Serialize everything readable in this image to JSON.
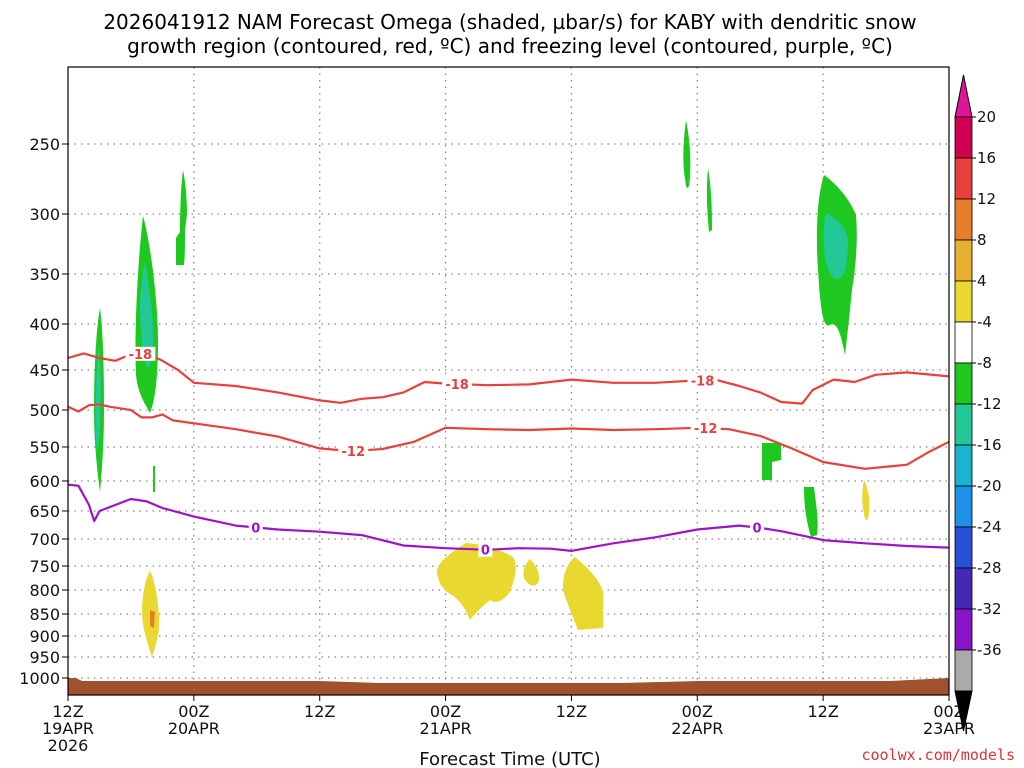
{
  "title_line1": "2026041912 NAM Forecast Omega (shaded, µbar/s) for KABY with dendritic snow",
  "title_line2": "growth region (contoured, red, ºC) and freezing level (contoured, purple, ºC)",
  "credit": "coolwx.com/models",
  "colors": {
    "dgz_contour": "#e8403a",
    "freezing_contour": "#9b14c8",
    "terrain": "#a0522d",
    "grid": "#888888"
  },
  "chart_data": {
    "type": "heatmap",
    "title": "2026041912 NAM Forecast Omega (shaded, µbar/s) for KABY with dendritic snow growth region (contoured, red, ºC) and freezing level (contoured, purple, ºC)",
    "xlabel": "Forecast Time (UTC)",
    "ylabel": "",
    "x_range_hours": [
      0,
      84
    ],
    "y_range_hPa": [
      1030,
      200
    ],
    "y_ticks": [
      "250",
      "300",
      "350",
      "400",
      "450",
      "500",
      "550",
      "600",
      "650",
      "700",
      "750",
      "800",
      "850",
      "900",
      "950",
      "1000"
    ],
    "x_ticks": [
      {
        "hour": 0,
        "line1": "12Z",
        "line2": "19APR",
        "line3": "2026"
      },
      {
        "hour": 12,
        "line1": "00Z",
        "line2": "20APR",
        "line3": ""
      },
      {
        "hour": 24,
        "line1": "12Z",
        "line2": "",
        "line3": ""
      },
      {
        "hour": 36,
        "line1": "00Z",
        "line2": "21APR",
        "line3": ""
      },
      {
        "hour": 48,
        "line1": "12Z",
        "line2": "",
        "line3": ""
      },
      {
        "hour": 60,
        "line1": "00Z",
        "line2": "22APR",
        "line3": ""
      },
      {
        "hour": 72,
        "line1": "12Z",
        "line2": "",
        "line3": ""
      },
      {
        "hour": 84,
        "line1": "00Z",
        "line2": "23APR",
        "line3": ""
      }
    ],
    "grid": true,
    "colorbar": {
      "units": "µbar/s",
      "levels": [
        "20",
        "16",
        "12",
        "8",
        "4",
        "-4",
        "-8",
        "-12",
        "-16",
        "-20",
        "-24",
        "-28",
        "-32",
        "-36"
      ],
      "colors": [
        "#d20050",
        "#e8403a",
        "#e87e2a",
        "#e8b030",
        "#e8d830",
        "#ffffff",
        "#1ec81e",
        "#22c896",
        "#19b4d2",
        "#1e90e6",
        "#2850d8",
        "#4628b4",
        "#8c14c8",
        "#aaaaaa"
      ],
      "top_arrow": "#e0149a",
      "bottom_arrow": "#000000"
    },
    "series": [
      {
        "name": "-18",
        "kind": "isotherm",
        "label_hours": [
          6.9,
          37.1,
          60.5
        ],
        "points": [
          [
            0,
            437
          ],
          [
            1.5,
            432
          ],
          [
            3,
            437
          ],
          [
            4.5,
            440
          ],
          [
            6,
            433
          ],
          [
            7.5,
            432
          ],
          [
            9,
            440
          ],
          [
            10.5,
            450
          ],
          [
            12,
            466
          ],
          [
            16,
            470
          ],
          [
            20,
            478
          ],
          [
            24,
            488
          ],
          [
            26,
            491
          ],
          [
            28,
            486
          ],
          [
            30,
            484
          ],
          [
            32,
            478
          ],
          [
            34,
            465
          ],
          [
            36,
            467
          ],
          [
            40,
            469
          ],
          [
            44,
            468
          ],
          [
            48,
            462
          ],
          [
            52,
            466
          ],
          [
            56,
            466
          ],
          [
            60,
            463
          ],
          [
            62,
            463
          ],
          [
            64,
            470
          ],
          [
            66,
            478
          ],
          [
            68,
            490
          ],
          [
            70,
            492
          ],
          [
            71,
            475
          ],
          [
            73,
            462
          ],
          [
            75,
            465
          ],
          [
            77,
            456
          ],
          [
            80,
            453
          ],
          [
            84,
            458
          ]
        ]
      },
      {
        "name": "-12",
        "kind": "isotherm",
        "label_hours": [
          27.2,
          60.8
        ],
        "points": [
          [
            0,
            496
          ],
          [
            1,
            502
          ],
          [
            2,
            494
          ],
          [
            3,
            493
          ],
          [
            4,
            496
          ],
          [
            6,
            500
          ],
          [
            7,
            510
          ],
          [
            8,
            510
          ],
          [
            9,
            506
          ],
          [
            10,
            514
          ],
          [
            12,
            518
          ],
          [
            16,
            526
          ],
          [
            20,
            536
          ],
          [
            24,
            552
          ],
          [
            27,
            556
          ],
          [
            30,
            553
          ],
          [
            33,
            543
          ],
          [
            36,
            524
          ],
          [
            40,
            526
          ],
          [
            44,
            527
          ],
          [
            48,
            525
          ],
          [
            52,
            527
          ],
          [
            56,
            526
          ],
          [
            60,
            524
          ],
          [
            63,
            526
          ],
          [
            66,
            535
          ],
          [
            69,
            552
          ],
          [
            72,
            572
          ],
          [
            76,
            582
          ],
          [
            80,
            576
          ],
          [
            82,
            558
          ],
          [
            84,
            543
          ]
        ]
      },
      {
        "name": "0",
        "kind": "isotherm",
        "label_hours": [
          17.9,
          39.8,
          65.7
        ],
        "points": [
          [
            0,
            606
          ],
          [
            1,
            608
          ],
          [
            2,
            640
          ],
          [
            2.5,
            668
          ],
          [
            3,
            650
          ],
          [
            4.5,
            640
          ],
          [
            6,
            630
          ],
          [
            7.5,
            634
          ],
          [
            9,
            645
          ],
          [
            12,
            660
          ],
          [
            16,
            676
          ],
          [
            20,
            683
          ],
          [
            24,
            687
          ],
          [
            28,
            693
          ],
          [
            32,
            712
          ],
          [
            36,
            717
          ],
          [
            40,
            720
          ],
          [
            43,
            717
          ],
          [
            46,
            718
          ],
          [
            48,
            722
          ],
          [
            50,
            715
          ],
          [
            52,
            708
          ],
          [
            56,
            697
          ],
          [
            60,
            683
          ],
          [
            64,
            676
          ],
          [
            66,
            680
          ],
          [
            68,
            686
          ],
          [
            70,
            694
          ],
          [
            72,
            702
          ],
          [
            76,
            708
          ],
          [
            80,
            713
          ],
          [
            84,
            716
          ]
        ]
      }
    ]
  }
}
